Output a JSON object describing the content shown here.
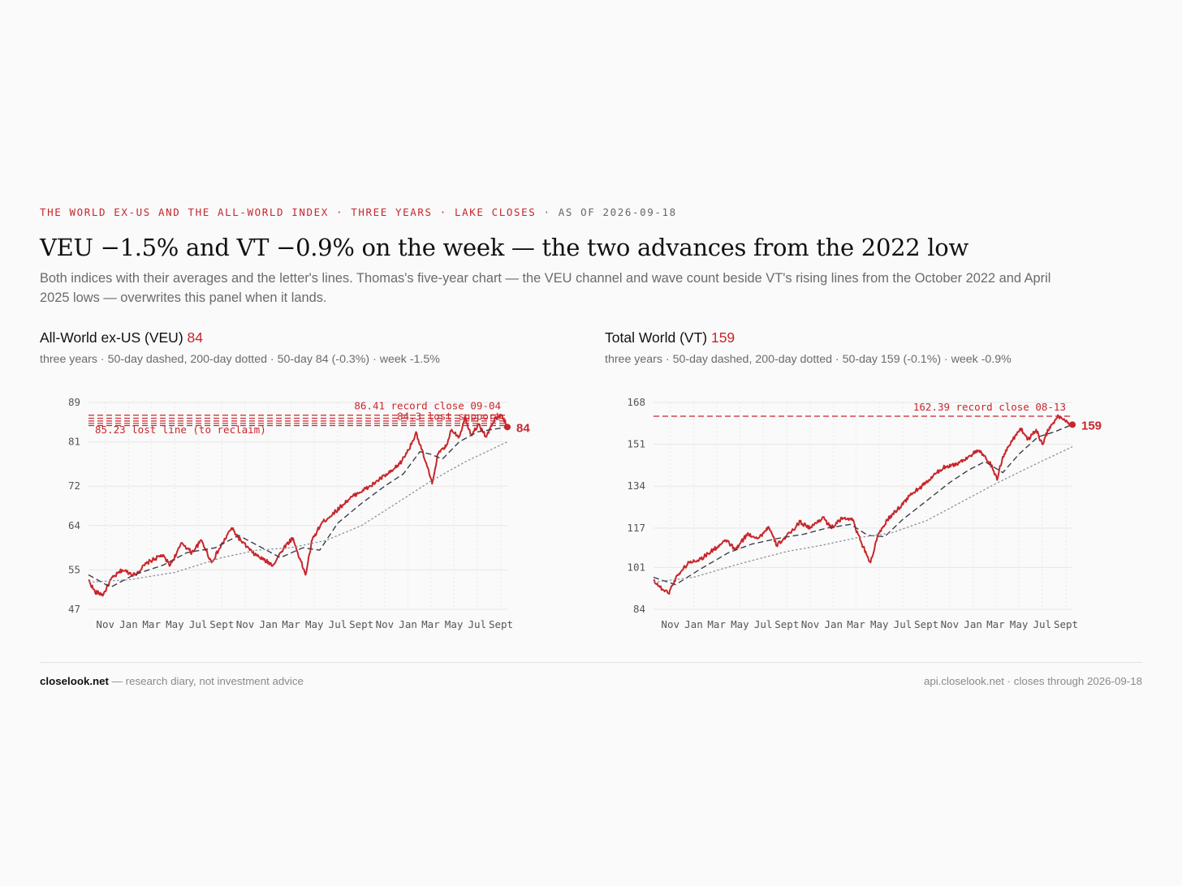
{
  "kicker": {
    "main": "THE WORLD EX-US AND THE ALL-WORLD INDEX · THREE YEARS · LAKE CLOSES",
    "asof": " · AS OF 2026-09-18"
  },
  "headline": "VEU −1.5% and VT −0.9% on the week — the two advances from the 2022 low",
  "dek": "Both indices with their averages and the letter's lines. Thomas's five-year chart — the VEU channel and wave count beside VT's rising lines from the October 2022 and April 2025 lows — overwrites this panel when it lands.",
  "colors": {
    "price": "#c8262c",
    "sma50": "#3c3f4a",
    "sma200": "#8a8fa3",
    "grid": "#e6e6e6",
    "axis": "#555555"
  },
  "footer": {
    "brand": "closelook.net",
    "note": " — research diary, not investment advice",
    "right": "api.closelook.net · closes through 2026-09-18"
  },
  "panels": [
    {
      "title": "All-World ex-US (VEU)",
      "last_label": "84",
      "subtitle": "three years · 50-day dashed, 200-day dotted · 50-day 84 (-0.3%) · week -1.5%",
      "chart_data": {
        "type": "line",
        "ticker": "VEU",
        "y_ticks": [
          47,
          55,
          64,
          72,
          81,
          89
        ],
        "ylim": [
          47,
          89
        ],
        "xlim": [
          "2023-09-18",
          "2026-09-18"
        ],
        "x_ticks": [
          {
            "date": "2023-11-01",
            "label": "Nov"
          },
          {
            "date": "2024-01-01",
            "label": "Jan"
          },
          {
            "date": "2024-03-01",
            "label": "Mar"
          },
          {
            "date": "2024-05-01",
            "label": "May"
          },
          {
            "date": "2024-07-01",
            "label": "Jul"
          },
          {
            "date": "2024-09-01",
            "label": "Sept"
          },
          {
            "date": "2024-11-01",
            "label": "Nov"
          },
          {
            "date": "2025-01-01",
            "label": "Jan"
          },
          {
            "date": "2025-03-01",
            "label": "Mar"
          },
          {
            "date": "2025-05-01",
            "label": "May"
          },
          {
            "date": "2025-07-01",
            "label": "Jul"
          },
          {
            "date": "2025-09-01",
            "label": "Sept"
          },
          {
            "date": "2025-11-01",
            "label": "Nov"
          },
          {
            "date": "2026-01-01",
            "label": "Jan"
          },
          {
            "date": "2026-03-01",
            "label": "Mar"
          },
          {
            "date": "2026-05-01",
            "label": "May"
          },
          {
            "date": "2026-07-01",
            "label": "Jul"
          },
          {
            "date": "2026-09-01",
            "label": "Sept"
          }
        ],
        "last_value": 84,
        "series": [
          {
            "key": "close",
            "style": "solid",
            "values": [
              [
                "2023-09-18",
                53.0
              ],
              [
                "2023-10-05",
                50.5
              ],
              [
                "2023-10-27",
                50.0
              ],
              [
                "2023-11-15",
                53.0
              ],
              [
                "2023-12-15",
                55.0
              ],
              [
                "2024-01-17",
                54.0
              ],
              [
                "2024-02-20",
                56.5
              ],
              [
                "2024-03-28",
                58.0
              ],
              [
                "2024-04-19",
                56.0
              ],
              [
                "2024-05-20",
                60.5
              ],
              [
                "2024-06-14",
                58.5
              ],
              [
                "2024-07-10",
                61.0
              ],
              [
                "2024-08-05",
                56.5
              ],
              [
                "2024-09-26",
                63.5
              ],
              [
                "2024-10-20",
                61.0
              ],
              [
                "2024-11-20",
                58.5
              ],
              [
                "2024-12-20",
                57.0
              ],
              [
                "2025-01-13",
                56.0
              ],
              [
                "2025-02-10",
                59.5
              ],
              [
                "2025-03-05",
                61.5
              ],
              [
                "2025-04-08",
                54.0
              ],
              [
                "2025-04-25",
                61.0
              ],
              [
                "2025-05-20",
                64.5
              ],
              [
                "2025-06-20",
                66.5
              ],
              [
                "2025-07-25",
                69.0
              ],
              [
                "2025-08-20",
                70.5
              ],
              [
                "2025-09-25",
                72.0
              ],
              [
                "2025-10-20",
                73.5
              ],
              [
                "2025-11-20",
                75.0
              ],
              [
                "2025-12-15",
                77.0
              ],
              [
                "2026-01-10",
                80.5
              ],
              [
                "2026-01-22",
                83.0
              ],
              [
                "2026-02-05",
                79.5
              ],
              [
                "2026-02-20",
                76.0
              ],
              [
                "2026-03-05",
                72.5
              ],
              [
                "2026-03-20",
                78.5
              ],
              [
                "2026-04-10",
                80.0
              ],
              [
                "2026-04-25",
                83.5
              ],
              [
                "2026-05-15",
                82.0
              ],
              [
                "2026-05-30",
                86.0
              ],
              [
                "2026-06-15",
                82.5
              ],
              [
                "2026-07-05",
                84.5
              ],
              [
                "2026-07-25",
                82.0
              ],
              [
                "2026-08-15",
                85.5
              ],
              [
                "2026-09-04",
                86.41
              ],
              [
                "2026-09-18",
                84.0
              ]
            ]
          },
          {
            "key": "sma50",
            "style": "dashed",
            "values": [
              [
                "2023-09-18",
                54.0
              ],
              [
                "2023-11-15",
                51.5
              ],
              [
                "2024-01-15",
                54.0
              ],
              [
                "2024-04-01",
                56.0
              ],
              [
                "2024-06-01",
                58.5
              ],
              [
                "2024-08-15",
                59.5
              ],
              [
                "2024-10-15",
                62.0
              ],
              [
                "2024-12-15",
                59.5
              ],
              [
                "2025-02-01",
                57.5
              ],
              [
                "2025-04-01",
                59.5
              ],
              [
                "2025-05-15",
                59.0
              ],
              [
                "2025-07-01",
                64.5
              ],
              [
                "2025-09-01",
                68.5
              ],
              [
                "2025-11-01",
                72.0
              ],
              [
                "2025-12-20",
                74.5
              ],
              [
                "2026-02-01",
                79.0
              ],
              [
                "2026-03-01",
                78.5
              ],
              [
                "2026-04-01",
                77.5
              ],
              [
                "2026-05-15",
                81.0
              ],
              [
                "2026-07-01",
                83.0
              ],
              [
                "2026-09-18",
                84.0
              ]
            ]
          },
          {
            "key": "sma200",
            "style": "dotted",
            "values": [
              [
                "2023-09-18",
                52.5
              ],
              [
                "2024-01-01",
                53.0
              ],
              [
                "2024-05-01",
                54.5
              ],
              [
                "2024-09-01",
                57.5
              ],
              [
                "2024-12-01",
                59.0
              ],
              [
                "2025-03-01",
                59.5
              ],
              [
                "2025-06-01",
                61.0
              ],
              [
                "2025-09-01",
                64.0
              ],
              [
                "2025-12-01",
                68.5
              ],
              [
                "2026-03-01",
                73.0
              ],
              [
                "2026-06-01",
                77.0
              ],
              [
                "2026-09-18",
                81.0
              ]
            ]
          }
        ],
        "levels": [
          {
            "value": 86.41,
            "label": "86.41 record close 09-04",
            "label_pos": "right"
          },
          {
            "value": 85.23,
            "label": "85.23 lost line (to reclaim)",
            "label_pos": "left-below"
          },
          {
            "value": 84.3,
            "label": "84.3 lost support",
            "label_pos": "right"
          },
          {
            "value": 85.8,
            "label": "",
            "label_pos": "none"
          },
          {
            "value": 84.75,
            "label": "",
            "label_pos": "none"
          }
        ]
      }
    },
    {
      "title": "Total World (VT)",
      "last_label": "159",
      "subtitle": "three years · 50-day dashed, 200-day dotted · 50-day 159 (-0.1%) · week -0.9%",
      "chart_data": {
        "type": "line",
        "ticker": "VT",
        "y_ticks": [
          84,
          101,
          117,
          134,
          151,
          168
        ],
        "ylim": [
          84,
          168
        ],
        "xlim": [
          "2023-09-18",
          "2026-09-18"
        ],
        "x_ticks": [
          {
            "date": "2023-11-01",
            "label": "Nov"
          },
          {
            "date": "2024-01-01",
            "label": "Jan"
          },
          {
            "date": "2024-03-01",
            "label": "Mar"
          },
          {
            "date": "2024-05-01",
            "label": "May"
          },
          {
            "date": "2024-07-01",
            "label": "Jul"
          },
          {
            "date": "2024-09-01",
            "label": "Sept"
          },
          {
            "date": "2024-11-01",
            "label": "Nov"
          },
          {
            "date": "2025-01-01",
            "label": "Jan"
          },
          {
            "date": "2025-03-01",
            "label": "Mar"
          },
          {
            "date": "2025-05-01",
            "label": "May"
          },
          {
            "date": "2025-07-01",
            "label": "Jul"
          },
          {
            "date": "2025-09-01",
            "label": "Sept"
          },
          {
            "date": "2025-11-01",
            "label": "Nov"
          },
          {
            "date": "2026-01-01",
            "label": "Jan"
          },
          {
            "date": "2026-03-01",
            "label": "Mar"
          },
          {
            "date": "2026-05-01",
            "label": "May"
          },
          {
            "date": "2026-07-01",
            "label": "Jul"
          },
          {
            "date": "2026-09-01",
            "label": "Sept"
          }
        ],
        "last_value": 159,
        "series": [
          {
            "key": "close",
            "style": "solid",
            "values": [
              [
                "2023-09-18",
                96.0
              ],
              [
                "2023-10-05",
                93.0
              ],
              [
                "2023-10-27",
                90.5
              ],
              [
                "2023-11-20",
                98.0
              ],
              [
                "2023-12-20",
                103.0
              ],
              [
                "2024-01-20",
                104.5
              ],
              [
                "2024-02-20",
                108.0
              ],
              [
                "2024-03-28",
                112.0
              ],
              [
                "2024-04-19",
                108.0
              ],
              [
                "2024-05-20",
                114.5
              ],
              [
                "2024-06-20",
                113.0
              ],
              [
                "2024-07-15",
                117.5
              ],
              [
                "2024-08-05",
                110.0
              ],
              [
                "2024-09-10",
                115.0
              ],
              [
                "2024-10-05",
                119.5
              ],
              [
                "2024-11-01",
                117.0
              ],
              [
                "2024-12-05",
                121.5
              ],
              [
                "2024-12-25",
                117.0
              ],
              [
                "2025-01-25",
                121.0
              ],
              [
                "2025-02-18",
                121.0
              ],
              [
                "2025-03-12",
                112.0
              ],
              [
                "2025-04-08",
                103.0
              ],
              [
                "2025-04-25",
                113.0
              ],
              [
                "2025-05-20",
                120.0
              ],
              [
                "2025-06-20",
                125.0
              ],
              [
                "2025-07-25",
                131.0
              ],
              [
                "2025-08-25",
                134.5
              ],
              [
                "2025-09-25",
                139.0
              ],
              [
                "2025-10-20",
                142.0
              ],
              [
                "2025-11-20",
                143.0
              ],
              [
                "2025-12-20",
                146.0
              ],
              [
                "2026-01-15",
                148.5
              ],
              [
                "2026-02-05",
                145.0
              ],
              [
                "2026-02-20",
                142.0
              ],
              [
                "2026-03-05",
                136.5
              ],
              [
                "2026-03-20",
                146.0
              ],
              [
                "2026-04-15",
                153.0
              ],
              [
                "2026-05-05",
                157.5
              ],
              [
                "2026-05-25",
                153.0
              ],
              [
                "2026-06-15",
                157.0
              ],
              [
                "2026-07-01",
                151.0
              ],
              [
                "2026-07-20",
                158.0
              ],
              [
                "2026-08-13",
                162.39
              ],
              [
                "2026-09-01",
                160.5
              ],
              [
                "2026-09-18",
                159.0
              ]
            ]
          },
          {
            "key": "sma50",
            "style": "dashed",
            "values": [
              [
                "2023-09-18",
                97.0
              ],
              [
                "2023-11-15",
                94.0
              ],
              [
                "2024-01-15",
                100.0
              ],
              [
                "2024-04-01",
                107.0
              ],
              [
                "2024-06-01",
                110.5
              ],
              [
                "2024-08-15",
                113.0
              ],
              [
                "2024-10-15",
                114.5
              ],
              [
                "2024-12-15",
                117.0
              ],
              [
                "2025-02-15",
                118.5
              ],
              [
                "2025-04-01",
                114.0
              ],
              [
                "2025-05-15",
                113.5
              ],
              [
                "2025-07-01",
                120.5
              ],
              [
                "2025-09-01",
                128.0
              ],
              [
                "2025-11-01",
                135.5
              ],
              [
                "2025-12-20",
                140.5
              ],
              [
                "2026-02-01",
                144.0
              ],
              [
                "2026-03-20",
                139.5
              ],
              [
                "2026-05-01",
                147.0
              ],
              [
                "2026-06-20",
                154.0
              ],
              [
                "2026-08-01",
                156.0
              ],
              [
                "2026-09-18",
                159.0
              ]
            ]
          },
          {
            "key": "sma200",
            "style": "dotted",
            "values": [
              [
                "2023-09-18",
                95.0
              ],
              [
                "2024-01-01",
                97.0
              ],
              [
                "2024-05-01",
                102.5
              ],
              [
                "2024-09-01",
                107.5
              ],
              [
                "2024-12-01",
                110.0
              ],
              [
                "2025-03-01",
                113.0
              ],
              [
                "2025-06-01",
                115.0
              ],
              [
                "2025-09-01",
                120.0
              ],
              [
                "2025-12-01",
                127.5
              ],
              [
                "2026-03-01",
                135.0
              ],
              [
                "2026-06-01",
                142.0
              ],
              [
                "2026-09-18",
                150.0
              ]
            ]
          }
        ],
        "levels": [
          {
            "value": 162.39,
            "label": "162.39 record close 08-13",
            "label_pos": "right"
          }
        ]
      }
    }
  ]
}
